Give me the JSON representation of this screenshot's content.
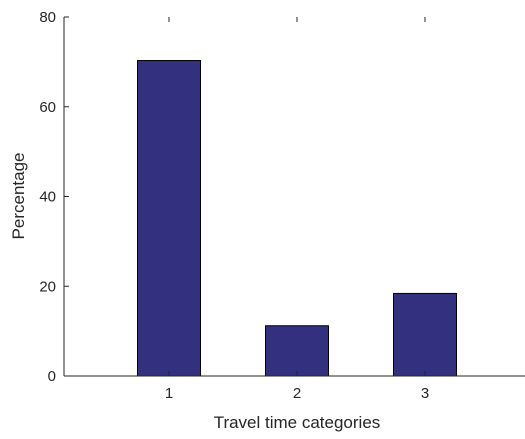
{
  "chart_data": {
    "type": "bar",
    "categories": [
      "1",
      "2",
      "3"
    ],
    "values": [
      70.3,
      11.2,
      18.4
    ],
    "xlabel": "Travel time categories",
    "ylabel": "Percentage",
    "ylim": [
      0,
      80
    ],
    "yticks": [
      0,
      20,
      40,
      60,
      80
    ],
    "bar_color": "#33307f",
    "grid": false,
    "legend": false
  }
}
